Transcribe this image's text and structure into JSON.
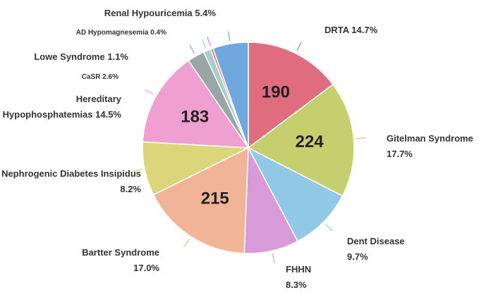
{
  "chart_data": {
    "type": "pie",
    "categories": [
      "DRTA",
      "Gitelman Syndrome",
      "Dent Disease",
      "FHHN",
      "Bartter Syndrome",
      "Nephrogenic Diabetes Insipidus",
      "Hereditary Hypophosphatemias",
      "CaSR",
      "Lowe Syndrome",
      "AD Hypomagnesemia",
      "Renal Hypouricemia"
    ],
    "values": [
      14.7,
      17.7,
      9.7,
      8.3,
      17.0,
      8.2,
      14.5,
      2.6,
      1.1,
      0.4,
      5.4
    ],
    "value_labels": [
      "14.7%",
      "17.7%",
      "9.7%",
      "8.3%",
      "17.0%",
      "8.2%",
      "14.5%",
      "2.6%",
      "1.1%",
      "0.4%",
      "5.4%"
    ],
    "counts": [
      190,
      224,
      null,
      null,
      215,
      null,
      183,
      null,
      null,
      null,
      null
    ],
    "colors": [
      "#e06c80",
      "#c5cf6e",
      "#90c8e6",
      "#d89ad8",
      "#f2b496",
      "#dcd67a",
      "#f0a0d0",
      "#9aa5a5",
      "#a8d0c8",
      "#f08080",
      "#6fa8dc"
    ]
  }
}
